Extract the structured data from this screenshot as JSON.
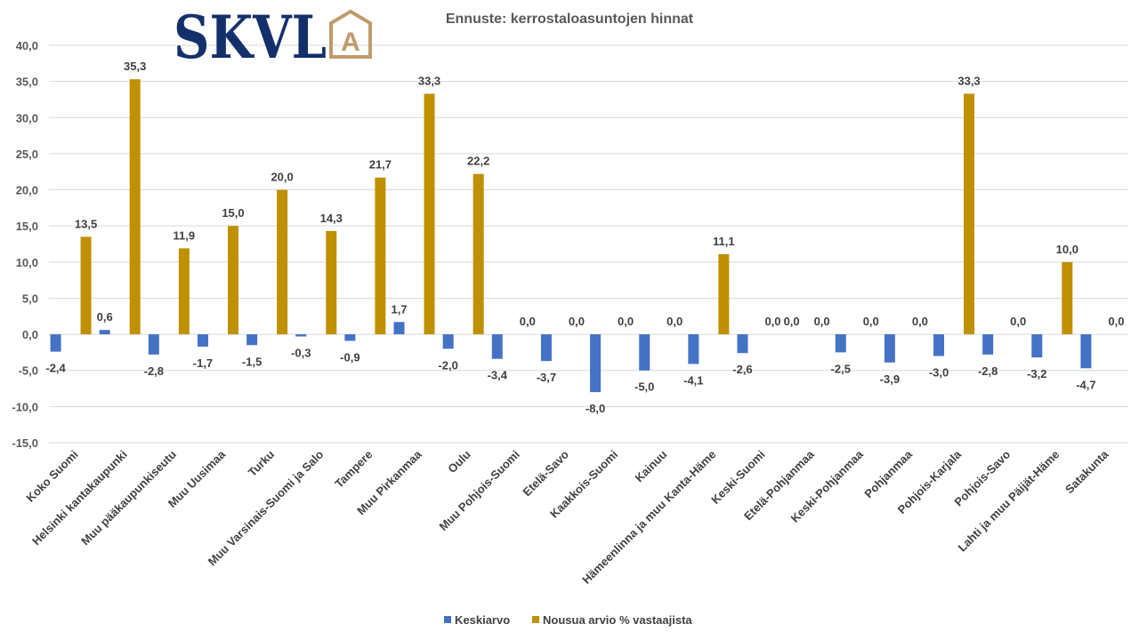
{
  "logo": {
    "text": "SKVL",
    "emblem_letter": "A",
    "text_color": "#14306b",
    "emblem_color": "#c19a6b"
  },
  "chart_data": {
    "type": "bar",
    "title": "Ennuste: kerrostaloasuntojen hinnat",
    "xlabel": "",
    "ylabel": "",
    "ylim": [
      -15,
      40
    ],
    "yticks": [
      -15,
      -10,
      -5,
      0,
      5,
      10,
      15,
      20,
      25,
      30,
      35,
      40
    ],
    "grid": true,
    "legend_position": "bottom",
    "categories": [
      "Koko Suomi",
      "Helsinki kantakaupunki",
      "Muu pääkaupunkiseutu",
      "Muu Uusimaa",
      "Turku",
      "Muu Varsinais-Suomi ja Salo",
      "Tampere",
      "Muu Pirkanmaa",
      "Oulu",
      "Muu Pohjois-Suomi",
      "Etelä-Savo",
      "Kaakkois-Suomi",
      "Kainuu",
      "Hämeenlinna ja muu Kanta-Häme",
      "Keski-Suomi",
      "Etelä-Pohjanmaa",
      "Keski-Pohjanmaa",
      "Pohjanmaa",
      "Pohjois-Karjala",
      "Pohjois-Savo",
      "Lahti ja muu Päijät-Häme",
      "Satakunta"
    ],
    "series": [
      {
        "name": "Keskiarvo",
        "color": "#4472c4",
        "values": [
          -2.4,
          0.6,
          -2.8,
          -1.7,
          -1.5,
          -0.3,
          -0.9,
          1.7,
          -2.0,
          -3.4,
          -3.7,
          -8.0,
          -5.0,
          -4.1,
          -2.6,
          0.0,
          -2.5,
          -3.9,
          -3.0,
          -2.8,
          -3.2,
          -4.7
        ]
      },
      {
        "name": "Nousua arvio % vastaajista",
        "color": "#bf9000",
        "values": [
          13.5,
          35.3,
          11.9,
          15.0,
          20.0,
          14.3,
          21.7,
          33.3,
          22.2,
          0.0,
          0.0,
          0.0,
          0.0,
          11.1,
          0.0,
          0.0,
          0.0,
          0.0,
          33.3,
          0.0,
          10.0,
          0.0
        ]
      }
    ]
  }
}
